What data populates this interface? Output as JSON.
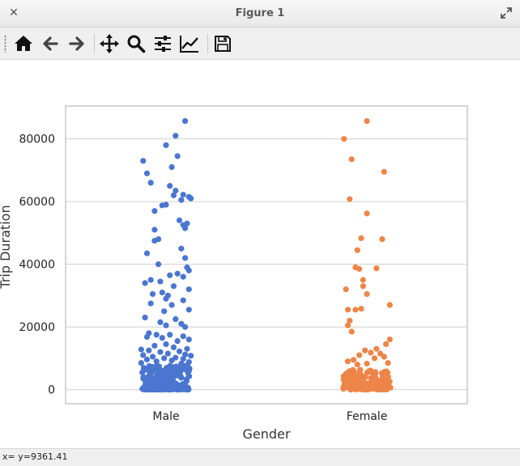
{
  "window": {
    "title": "Figure 1"
  },
  "toolbar": {
    "tools": [
      {
        "id": "home",
        "icon": "home-icon",
        "label": "Home"
      },
      {
        "id": "back",
        "icon": "arrow-left-icon",
        "label": "Back"
      },
      {
        "id": "forward",
        "icon": "arrow-right-icon",
        "label": "Forward"
      },
      {
        "id": "pan",
        "icon": "pan-icon",
        "label": "Pan"
      },
      {
        "id": "zoom",
        "icon": "zoom-icon",
        "label": "Zoom"
      },
      {
        "id": "subplots",
        "icon": "sliders-icon",
        "label": "Configure subplots"
      },
      {
        "id": "axes",
        "icon": "line-chart-icon",
        "label": "Edit axis"
      },
      {
        "id": "save",
        "icon": "save-icon",
        "label": "Save"
      }
    ]
  },
  "status": {
    "text": "x= y=9361.41"
  },
  "colors": {
    "male": "#4a76d0",
    "female": "#ee8548",
    "grid": "#cfcfcf",
    "frame": "#c8c8c8"
  },
  "chart_data": {
    "type": "scatter",
    "title": "",
    "xlabel": "Gender",
    "ylabel": "Trip Duration",
    "categories": [
      "Male",
      "Female"
    ],
    "ylim": [
      -4500,
      90500
    ],
    "yticks": [
      0,
      20000,
      40000,
      60000,
      80000
    ],
    "ytick_labels": [
      "0",
      "20000",
      "40000",
      "60000",
      "80000"
    ],
    "grid": true,
    "series": [
      {
        "name": "Male",
        "category": "Male",
        "outliers": [
          {
            "jit": 0.1,
            "y": 85700
          },
          {
            "jit": 0.05,
            "y": 81000
          },
          {
            "jit": 0.0,
            "y": 78000
          },
          {
            "jit": 0.06,
            "y": 74500
          },
          {
            "jit": -0.12,
            "y": 73000
          },
          {
            "jit": 0.03,
            "y": 71000
          },
          {
            "jit": -0.1,
            "y": 69000
          },
          {
            "jit": -0.08,
            "y": 66000
          },
          {
            "jit": 0.02,
            "y": 65000
          },
          {
            "jit": 0.05,
            "y": 63500
          },
          {
            "jit": 0.04,
            "y": 62000
          },
          {
            "jit": 0.09,
            "y": 62200
          },
          {
            "jit": 0.12,
            "y": 61500
          },
          {
            "jit": 0.13,
            "y": 61000
          },
          {
            "jit": 0.08,
            "y": 60500
          },
          {
            "jit": 0.0,
            "y": 59000
          },
          {
            "jit": -0.02,
            "y": 58800
          },
          {
            "jit": -0.06,
            "y": 57000
          },
          {
            "jit": 0.07,
            "y": 54000
          },
          {
            "jit": 0.11,
            "y": 53000
          },
          {
            "jit": 0.09,
            "y": 52500
          },
          {
            "jit": -0.06,
            "y": 51000
          },
          {
            "jit": 0.1,
            "y": 51500
          },
          {
            "jit": -0.04,
            "y": 48000
          },
          {
            "jit": -0.06,
            "y": 47500
          },
          {
            "jit": 0.08,
            "y": 45000
          },
          {
            "jit": -0.1,
            "y": 43500
          },
          {
            "jit": 0.1,
            "y": 42000
          },
          {
            "jit": -0.04,
            "y": 40000
          },
          {
            "jit": 0.11,
            "y": 39000
          },
          {
            "jit": 0.12,
            "y": 38000
          },
          {
            "jit": 0.06,
            "y": 37000
          },
          {
            "jit": 0.02,
            "y": 36500
          },
          {
            "jit": 0.09,
            "y": 36000
          },
          {
            "jit": -0.08,
            "y": 35000
          },
          {
            "jit": -0.03,
            "y": 34500
          },
          {
            "jit": -0.11,
            "y": 34000
          },
          {
            "jit": 0.04,
            "y": 33000
          },
          {
            "jit": 0.12,
            "y": 32000
          },
          {
            "jit": -0.02,
            "y": 31000
          },
          {
            "jit": -0.07,
            "y": 30500
          },
          {
            "jit": 0.01,
            "y": 30000
          },
          {
            "jit": 0.0,
            "y": 29000
          },
          {
            "jit": 0.09,
            "y": 28500
          },
          {
            "jit": -0.08,
            "y": 27500
          },
          {
            "jit": 0.03,
            "y": 27000
          },
          {
            "jit": 0.12,
            "y": 25500
          },
          {
            "jit": -0.01,
            "y": 25000
          },
          {
            "jit": -0.11,
            "y": 23000
          },
          {
            "jit": 0.05,
            "y": 22500
          },
          {
            "jit": -0.03,
            "y": 21500
          },
          {
            "jit": 0.08,
            "y": 21000
          },
          {
            "jit": 0.0,
            "y": 20500
          },
          {
            "jit": 0.1,
            "y": 20000
          },
          {
            "jit": -0.09,
            "y": 18000
          },
          {
            "jit": -0.05,
            "y": 17500
          },
          {
            "jit": 0.02,
            "y": 17500
          },
          {
            "jit": 0.09,
            "y": 17000
          },
          {
            "jit": -0.02,
            "y": 16500
          },
          {
            "jit": 0.12,
            "y": 16000
          },
          {
            "jit": -0.1,
            "y": 16800
          },
          {
            "jit": 0.06,
            "y": 15500
          },
          {
            "jit": 0.0,
            "y": 14500
          },
          {
            "jit": -0.06,
            "y": 14000
          },
          {
            "jit": 0.04,
            "y": 13500
          },
          {
            "jit": 0.11,
            "y": 13000
          },
          {
            "jit": -0.13,
            "y": 12800
          },
          {
            "jit": -0.09,
            "y": 12500
          },
          {
            "jit": 0.07,
            "y": 12200
          },
          {
            "jit": -0.03,
            "y": 12000
          },
          {
            "jit": 0.01,
            "y": 11500
          },
          {
            "jit": 0.1,
            "y": 11200
          },
          {
            "jit": -0.12,
            "y": 11000
          },
          {
            "jit": 0.13,
            "y": 10800
          },
          {
            "jit": -0.07,
            "y": 10500
          },
          {
            "jit": 0.05,
            "y": 10200
          },
          {
            "jit": -0.01,
            "y": 10000
          },
          {
            "jit": 0.09,
            "y": 9800
          },
          {
            "jit": -0.1,
            "y": 9600
          },
          {
            "jit": 0.03,
            "y": 9300
          },
          {
            "jit": -0.05,
            "y": 9000
          },
          {
            "jit": 0.12,
            "y": 8800
          },
          {
            "jit": -0.13,
            "y": 8500
          },
          {
            "jit": 0.08,
            "y": 8300
          }
        ],
        "dense_band": {
          "y_min": 0,
          "y_max": 7800,
          "count": 260
        }
      },
      {
        "name": "Female",
        "category": "Female",
        "outliers": [
          {
            "jit": 0.0,
            "y": 85700
          },
          {
            "jit": -0.12,
            "y": 80000
          },
          {
            "jit": -0.08,
            "y": 73500
          },
          {
            "jit": 0.09,
            "y": 69500
          },
          {
            "jit": -0.09,
            "y": 60800
          },
          {
            "jit": 0.0,
            "y": 56200
          },
          {
            "jit": -0.03,
            "y": 48300
          },
          {
            "jit": 0.08,
            "y": 48000
          },
          {
            "jit": -0.05,
            "y": 44500
          },
          {
            "jit": -0.06,
            "y": 39000
          },
          {
            "jit": -0.04,
            "y": 38500
          },
          {
            "jit": 0.05,
            "y": 38700
          },
          {
            "jit": -0.02,
            "y": 35000
          },
          {
            "jit": -0.02,
            "y": 33000
          },
          {
            "jit": -0.11,
            "y": 32000
          },
          {
            "jit": 0.0,
            "y": 30500
          },
          {
            "jit": 0.12,
            "y": 27000
          },
          {
            "jit": -0.1,
            "y": 25500
          },
          {
            "jit": -0.06,
            "y": 25500
          },
          {
            "jit": -0.03,
            "y": 25800
          },
          {
            "jit": -0.09,
            "y": 22000
          },
          {
            "jit": -0.1,
            "y": 20500
          },
          {
            "jit": 0.12,
            "y": 16000
          },
          {
            "jit": -0.08,
            "y": 18500
          },
          {
            "jit": 0.1,
            "y": 14500
          },
          {
            "jit": 0.05,
            "y": 13000
          },
          {
            "jit": -0.01,
            "y": 12500
          },
          {
            "jit": 0.02,
            "y": 11800
          },
          {
            "jit": 0.07,
            "y": 11500
          },
          {
            "jit": -0.04,
            "y": 11000
          },
          {
            "jit": 0.09,
            "y": 10500
          },
          {
            "jit": 0.04,
            "y": 10000
          },
          {
            "jit": -0.07,
            "y": 9500
          },
          {
            "jit": -0.1,
            "y": 9000
          },
          {
            "jit": 0.11,
            "y": 8500
          },
          {
            "jit": 0.0,
            "y": 8300
          },
          {
            "jit": -0.05,
            "y": 8000
          }
        ],
        "dense_band": {
          "y_min": 0,
          "y_max": 6500,
          "count": 170
        }
      }
    ]
  }
}
